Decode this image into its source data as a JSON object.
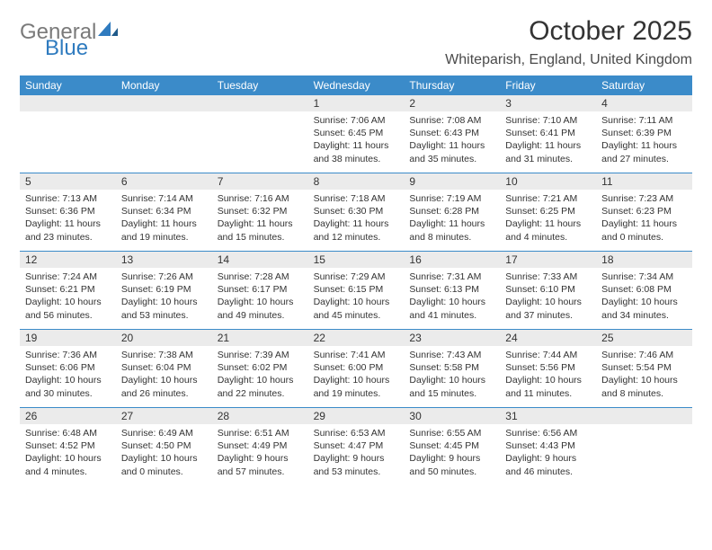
{
  "logo": {
    "text1": "General",
    "text2": "Blue"
  },
  "title": "October 2025",
  "location": "Whiteparish, England, United Kingdom",
  "colors": {
    "header_bg": "#3b8bc9",
    "daynum_bg": "#ebebeb",
    "week_border": "#3b8bc9",
    "text": "#333333",
    "logo_gray": "#7a7a7a",
    "logo_blue": "#2f7bbf"
  },
  "dayheaders": [
    "Sunday",
    "Monday",
    "Tuesday",
    "Wednesday",
    "Thursday",
    "Friday",
    "Saturday"
  ],
  "weeks": [
    [
      {
        "n": "",
        "sr": "",
        "ss": "",
        "dl": ""
      },
      {
        "n": "",
        "sr": "",
        "ss": "",
        "dl": ""
      },
      {
        "n": "",
        "sr": "",
        "ss": "",
        "dl": ""
      },
      {
        "n": "1",
        "sr": "Sunrise: 7:06 AM",
        "ss": "Sunset: 6:45 PM",
        "dl": "Daylight: 11 hours and 38 minutes."
      },
      {
        "n": "2",
        "sr": "Sunrise: 7:08 AM",
        "ss": "Sunset: 6:43 PM",
        "dl": "Daylight: 11 hours and 35 minutes."
      },
      {
        "n": "3",
        "sr": "Sunrise: 7:10 AM",
        "ss": "Sunset: 6:41 PM",
        "dl": "Daylight: 11 hours and 31 minutes."
      },
      {
        "n": "4",
        "sr": "Sunrise: 7:11 AM",
        "ss": "Sunset: 6:39 PM",
        "dl": "Daylight: 11 hours and 27 minutes."
      }
    ],
    [
      {
        "n": "5",
        "sr": "Sunrise: 7:13 AM",
        "ss": "Sunset: 6:36 PM",
        "dl": "Daylight: 11 hours and 23 minutes."
      },
      {
        "n": "6",
        "sr": "Sunrise: 7:14 AM",
        "ss": "Sunset: 6:34 PM",
        "dl": "Daylight: 11 hours and 19 minutes."
      },
      {
        "n": "7",
        "sr": "Sunrise: 7:16 AM",
        "ss": "Sunset: 6:32 PM",
        "dl": "Daylight: 11 hours and 15 minutes."
      },
      {
        "n": "8",
        "sr": "Sunrise: 7:18 AM",
        "ss": "Sunset: 6:30 PM",
        "dl": "Daylight: 11 hours and 12 minutes."
      },
      {
        "n": "9",
        "sr": "Sunrise: 7:19 AM",
        "ss": "Sunset: 6:28 PM",
        "dl": "Daylight: 11 hours and 8 minutes."
      },
      {
        "n": "10",
        "sr": "Sunrise: 7:21 AM",
        "ss": "Sunset: 6:25 PM",
        "dl": "Daylight: 11 hours and 4 minutes."
      },
      {
        "n": "11",
        "sr": "Sunrise: 7:23 AM",
        "ss": "Sunset: 6:23 PM",
        "dl": "Daylight: 11 hours and 0 minutes."
      }
    ],
    [
      {
        "n": "12",
        "sr": "Sunrise: 7:24 AM",
        "ss": "Sunset: 6:21 PM",
        "dl": "Daylight: 10 hours and 56 minutes."
      },
      {
        "n": "13",
        "sr": "Sunrise: 7:26 AM",
        "ss": "Sunset: 6:19 PM",
        "dl": "Daylight: 10 hours and 53 minutes."
      },
      {
        "n": "14",
        "sr": "Sunrise: 7:28 AM",
        "ss": "Sunset: 6:17 PM",
        "dl": "Daylight: 10 hours and 49 minutes."
      },
      {
        "n": "15",
        "sr": "Sunrise: 7:29 AM",
        "ss": "Sunset: 6:15 PM",
        "dl": "Daylight: 10 hours and 45 minutes."
      },
      {
        "n": "16",
        "sr": "Sunrise: 7:31 AM",
        "ss": "Sunset: 6:13 PM",
        "dl": "Daylight: 10 hours and 41 minutes."
      },
      {
        "n": "17",
        "sr": "Sunrise: 7:33 AM",
        "ss": "Sunset: 6:10 PM",
        "dl": "Daylight: 10 hours and 37 minutes."
      },
      {
        "n": "18",
        "sr": "Sunrise: 7:34 AM",
        "ss": "Sunset: 6:08 PM",
        "dl": "Daylight: 10 hours and 34 minutes."
      }
    ],
    [
      {
        "n": "19",
        "sr": "Sunrise: 7:36 AM",
        "ss": "Sunset: 6:06 PM",
        "dl": "Daylight: 10 hours and 30 minutes."
      },
      {
        "n": "20",
        "sr": "Sunrise: 7:38 AM",
        "ss": "Sunset: 6:04 PM",
        "dl": "Daylight: 10 hours and 26 minutes."
      },
      {
        "n": "21",
        "sr": "Sunrise: 7:39 AM",
        "ss": "Sunset: 6:02 PM",
        "dl": "Daylight: 10 hours and 22 minutes."
      },
      {
        "n": "22",
        "sr": "Sunrise: 7:41 AM",
        "ss": "Sunset: 6:00 PM",
        "dl": "Daylight: 10 hours and 19 minutes."
      },
      {
        "n": "23",
        "sr": "Sunrise: 7:43 AM",
        "ss": "Sunset: 5:58 PM",
        "dl": "Daylight: 10 hours and 15 minutes."
      },
      {
        "n": "24",
        "sr": "Sunrise: 7:44 AM",
        "ss": "Sunset: 5:56 PM",
        "dl": "Daylight: 10 hours and 11 minutes."
      },
      {
        "n": "25",
        "sr": "Sunrise: 7:46 AM",
        "ss": "Sunset: 5:54 PM",
        "dl": "Daylight: 10 hours and 8 minutes."
      }
    ],
    [
      {
        "n": "26",
        "sr": "Sunrise: 6:48 AM",
        "ss": "Sunset: 4:52 PM",
        "dl": "Daylight: 10 hours and 4 minutes."
      },
      {
        "n": "27",
        "sr": "Sunrise: 6:49 AM",
        "ss": "Sunset: 4:50 PM",
        "dl": "Daylight: 10 hours and 0 minutes."
      },
      {
        "n": "28",
        "sr": "Sunrise: 6:51 AM",
        "ss": "Sunset: 4:49 PM",
        "dl": "Daylight: 9 hours and 57 minutes."
      },
      {
        "n": "29",
        "sr": "Sunrise: 6:53 AM",
        "ss": "Sunset: 4:47 PM",
        "dl": "Daylight: 9 hours and 53 minutes."
      },
      {
        "n": "30",
        "sr": "Sunrise: 6:55 AM",
        "ss": "Sunset: 4:45 PM",
        "dl": "Daylight: 9 hours and 50 minutes."
      },
      {
        "n": "31",
        "sr": "Sunrise: 6:56 AM",
        "ss": "Sunset: 4:43 PM",
        "dl": "Daylight: 9 hours and 46 minutes."
      },
      {
        "n": "",
        "sr": "",
        "ss": "",
        "dl": ""
      }
    ]
  ]
}
